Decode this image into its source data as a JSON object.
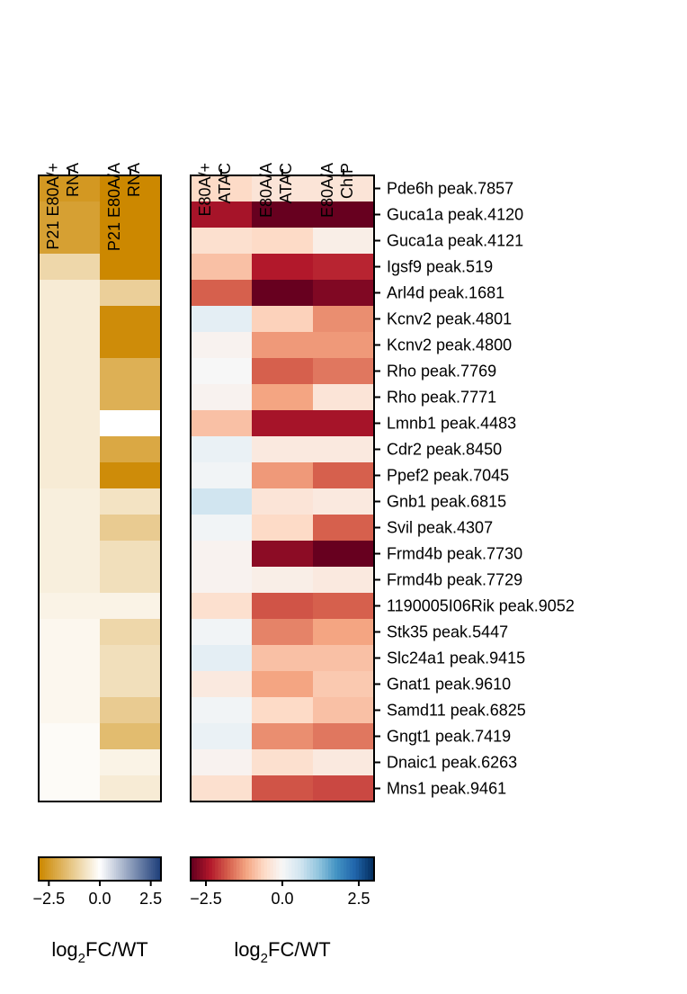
{
  "chart_data": {
    "type": "heatmap",
    "row_labels": [
      "Pde6h peak.7857",
      "Guca1a peak.4120",
      "Guca1a peak.4121",
      "Igsf9 peak.519",
      "Arl4d peak.1681",
      "Kcnv2 peak.4801",
      "Kcnv2 peak.4800",
      "Rho peak.7769",
      "Rho peak.7771",
      "Lmnb1 peak.4483",
      "Cdr2 peak.8450",
      "Ppef2 peak.7045",
      "Gnb1 peak.6815",
      "Svil peak.4307",
      "Frmd4b peak.7730",
      "Frmd4b peak.7729",
      "1190005I06Rik peak.9052",
      "Stk35 peak.5447",
      "Slc24a1 peak.9415",
      "Gnat1 peak.9610",
      "Samd11 peak.6825",
      "Gngt1 peak.7419",
      "Dnaic1 peak.6263",
      "Mns1 peak.9461"
    ],
    "panels": [
      {
        "name": "rna",
        "columns": [
          {
            "line1": "P21 E80A/+",
            "line2": "RNA"
          },
          {
            "line1": "P21 E80A/A",
            "line2": "RNA"
          }
        ],
        "vmin": -3,
        "vmax": 3,
        "colormap": [
          "#cc8800",
          "#ffffff",
          "#1f3f7a"
        ],
        "values": [
          [
            -2.6,
            -3.0
          ],
          [
            -2.4,
            -3.0
          ],
          [
            -2.4,
            -3.0
          ],
          [
            -1.0,
            -3.0
          ],
          [
            -0.5,
            -1.2
          ],
          [
            -0.5,
            -2.9
          ],
          [
            -0.5,
            -2.9
          ],
          [
            -0.5,
            -2.0
          ],
          [
            -0.5,
            -2.0
          ],
          [
            -0.5,
            0.0
          ],
          [
            -0.5,
            -2.2
          ],
          [
            -0.5,
            -2.9
          ],
          [
            -0.4,
            -0.7
          ],
          [
            -0.4,
            -1.3
          ],
          [
            -0.4,
            -0.8
          ],
          [
            -0.4,
            -0.8
          ],
          [
            -0.3,
            -0.3
          ],
          [
            -0.2,
            -1.0
          ],
          [
            -0.2,
            -0.8
          ],
          [
            -0.2,
            -0.8
          ],
          [
            -0.2,
            -1.3
          ],
          [
            -0.1,
            -1.7
          ],
          [
            -0.1,
            -0.3
          ],
          [
            -0.1,
            -0.5
          ]
        ]
      },
      {
        "name": "atac",
        "columns": [
          {
            "line1": "E80A/+",
            "line2": "ATAC"
          },
          {
            "line1": "E80A/A",
            "line2": "ATAC"
          },
          {
            "line1": "E80A/A",
            "line2": "ChIP"
          }
        ],
        "vmin": -3,
        "vmax": 3,
        "colormap": [
          "#67001f",
          "#b2182b",
          "#d6604d",
          "#f4a582",
          "#fddbc7",
          "#f7f7f7",
          "#d1e5f0",
          "#92c5de",
          "#4393c3",
          "#2166ac",
          "#053061"
        ],
        "values": [
          [
            -0.6,
            -0.4,
            -0.4
          ],
          [
            -2.5,
            -3.0,
            -3.0
          ],
          [
            -0.5,
            -0.6,
            -0.2
          ],
          [
            -0.9,
            -2.4,
            -2.3
          ],
          [
            -1.8,
            -3.0,
            -2.8
          ],
          [
            0.3,
            -0.7,
            -1.4
          ],
          [
            -0.1,
            -1.3,
            -1.3
          ],
          [
            0.0,
            -1.8,
            -1.6
          ],
          [
            -0.1,
            -1.2,
            -0.4
          ],
          [
            -0.9,
            -2.5,
            -2.5
          ],
          [
            0.2,
            -0.3,
            -0.3
          ],
          [
            0.1,
            -1.3,
            -1.8
          ],
          [
            0.6,
            -0.4,
            -0.3
          ],
          [
            0.1,
            -0.6,
            -1.8
          ],
          [
            -0.1,
            -2.7,
            -3.0
          ],
          [
            -0.1,
            -0.2,
            -0.3
          ],
          [
            -0.5,
            -1.9,
            -1.8
          ],
          [
            0.1,
            -1.5,
            -1.2
          ],
          [
            0.3,
            -0.9,
            -0.9
          ],
          [
            -0.3,
            -1.2,
            -0.8
          ],
          [
            0.1,
            -0.6,
            -0.9
          ],
          [
            0.2,
            -1.4,
            -1.6
          ],
          [
            -0.1,
            -0.5,
            -0.3
          ],
          [
            -0.5,
            -1.9,
            -2.0
          ]
        ]
      }
    ],
    "colorbars": [
      {
        "panel": "rna",
        "ticks": [
          -2.5,
          0.0,
          2.5
        ],
        "tick_labels": [
          "−2.5",
          "0.0",
          "2.5"
        ],
        "label_base": "log",
        "label_sub": "2",
        "label_rest": "FC/WT"
      },
      {
        "panel": "atac",
        "ticks": [
          -2.5,
          0.0,
          2.5
        ],
        "tick_labels": [
          "−2.5",
          "0.0",
          "2.5"
        ],
        "label_base": "log",
        "label_sub": "2",
        "label_rest": "FC/WT"
      }
    ]
  }
}
